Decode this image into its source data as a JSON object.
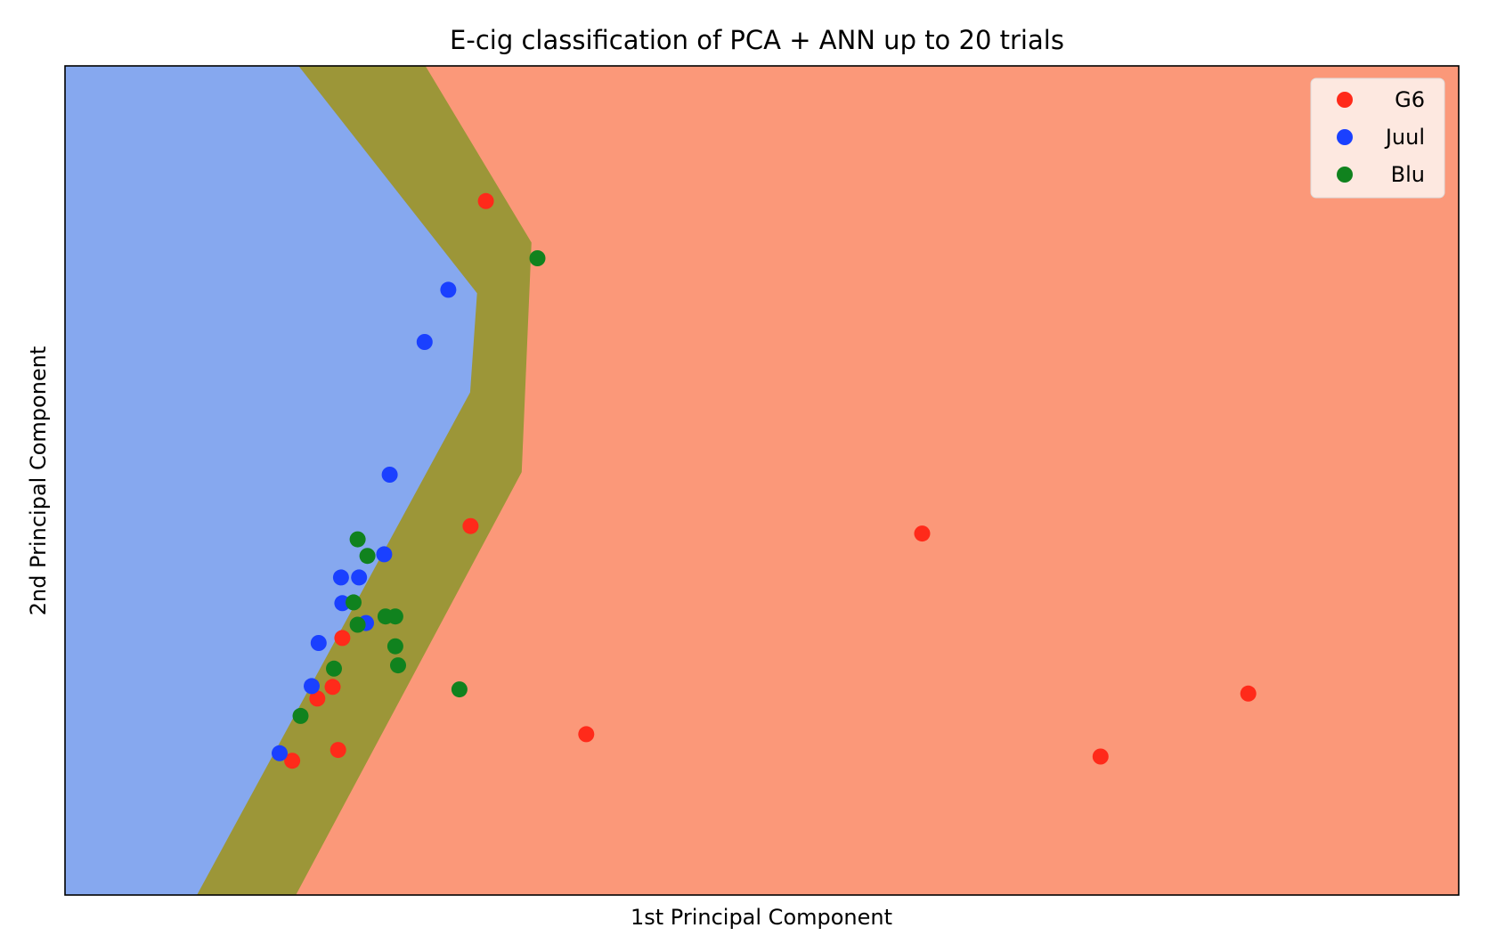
{
  "chart_data": {
    "type": "scatter",
    "title": "E-cig classification of PCA + ANN up to 20 trials",
    "xlabel": "1st Principal Component",
    "ylabel": "2nd Principal Component",
    "xlim": [
      0,
      100
    ],
    "ylim": [
      0,
      100
    ],
    "ticks_visible": false,
    "grid": false,
    "legend": {
      "placement": "top-right"
    },
    "regions": [
      {
        "class": "Juul",
        "color": "#86a8ef",
        "polygon": [
          [
            0,
            100
          ],
          [
            16.8,
            100
          ],
          [
            29.6,
            72.6
          ],
          [
            29.1,
            60.6
          ],
          [
            14.7,
            0
          ],
          [
            0,
            0
          ]
        ]
      },
      {
        "class": "Blu",
        "color": "#9c9638",
        "polygon": [
          [
            16.8,
            100
          ],
          [
            25.9,
            100
          ],
          [
            33.5,
            78.7
          ],
          [
            32.8,
            51.0
          ],
          [
            16.6,
            0
          ],
          [
            9.5,
            0
          ],
          [
            29.1,
            60.6
          ],
          [
            29.6,
            72.6
          ]
        ]
      },
      {
        "class": "G6",
        "color": "#fb9879",
        "polygon": [
          [
            25.9,
            100
          ],
          [
            100,
            100
          ],
          [
            100,
            0
          ],
          [
            16.6,
            0
          ],
          [
            32.8,
            51.0
          ],
          [
            33.5,
            78.7
          ]
        ]
      }
    ],
    "series": [
      {
        "name": "G6",
        "color": "#ff2a1a",
        "points": [
          [
            30.2,
            83.7
          ],
          [
            29.1,
            44.5
          ],
          [
            61.5,
            43.6
          ],
          [
            84.9,
            24.3
          ],
          [
            37.4,
            19.4
          ],
          [
            74.3,
            16.7
          ],
          [
            19.9,
            31.0
          ],
          [
            19.2,
            25.1
          ],
          [
            18.1,
            23.7
          ],
          [
            16.3,
            16.2
          ],
          [
            19.6,
            17.5
          ]
        ]
      },
      {
        "name": "Juul",
        "color": "#1a40ff",
        "points": [
          [
            27.5,
            73.0
          ],
          [
            25.8,
            66.7
          ],
          [
            23.3,
            50.7
          ],
          [
            22.9,
            41.1
          ],
          [
            19.8,
            38.3
          ],
          [
            21.1,
            38.3
          ],
          [
            19.9,
            35.2
          ],
          [
            21.6,
            32.8
          ],
          [
            18.2,
            30.4
          ],
          [
            17.7,
            25.2
          ],
          [
            15.4,
            17.1
          ]
        ]
      },
      {
        "name": "Blu",
        "color": "#10821e",
        "points": [
          [
            33.9,
            76.8
          ],
          [
            21.0,
            42.9
          ],
          [
            21.7,
            40.9
          ],
          [
            20.7,
            35.3
          ],
          [
            21.0,
            32.6
          ],
          [
            23.0,
            33.6
          ],
          [
            23.7,
            33.6
          ],
          [
            23.7,
            30.0
          ],
          [
            23.9,
            27.7
          ],
          [
            19.3,
            27.3
          ],
          [
            28.3,
            24.8
          ],
          [
            16.9,
            21.6
          ]
        ]
      }
    ]
  }
}
